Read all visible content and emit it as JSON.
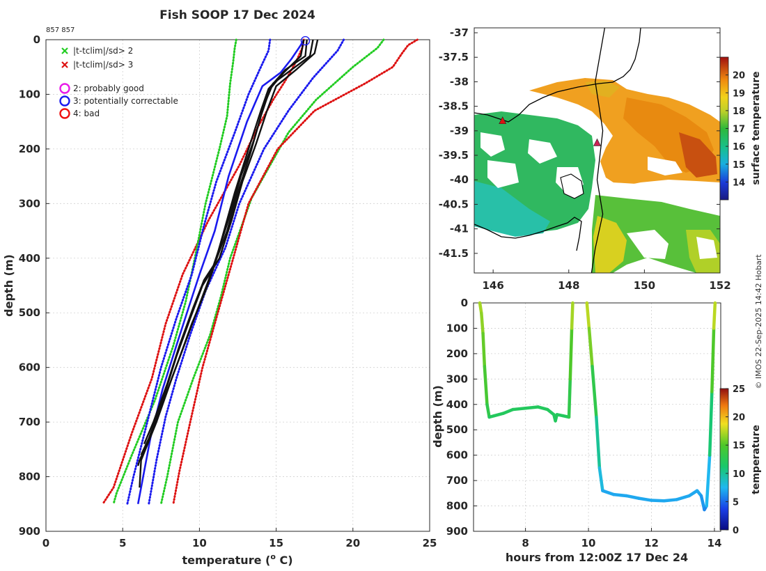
{
  "colors": {
    "thr2": "#22cc22",
    "thr3": "#dd1111",
    "climFit": "#1a1aee",
    "obs": "#111111",
    "flag2": "#e81ae8",
    "flag3": "#1a1aee",
    "flag4": "#ee1111"
  },
  "chart_data": [
    {
      "type": "line",
      "name": "profile",
      "title": "Fish SOOP 17 Dec 2024",
      "id_label": "857 857",
      "xlabel_prefix": "temperature (",
      "xlabel_sup": "o",
      "xlabel_suffix": " C)",
      "ylabel": "depth (m)",
      "xlim": [
        0,
        25
      ],
      "ylim": [
        900,
        0
      ],
      "xticks": [
        "0",
        "5",
        "10",
        "15",
        "20",
        "25"
      ],
      "yticks": [
        "0",
        "100",
        "200",
        "300",
        "400",
        "500",
        "600",
        "700",
        "800",
        "900"
      ],
      "legend": [
        {
          "marker": "x",
          "color": "#22cc22",
          "label": "|t-tclim|/sd> 2"
        },
        {
          "marker": "x",
          "color": "#dd1111",
          "label": "|t-tclim|/sd> 3"
        },
        {
          "marker": "o",
          "color": "#e81ae8",
          "label": "2: probably good"
        },
        {
          "marker": "o",
          "color": "#1a1aee",
          "label": "3: potentially correctable"
        },
        {
          "marker": "o",
          "color": "#ee1111",
          "label": "4: bad"
        }
      ],
      "series": [
        {
          "name": "clim -3sd",
          "style": "dotted",
          "color": "#dd1111",
          "points": [
            [
              16.8,
              0
            ],
            [
              16.7,
              15
            ],
            [
              16.3,
              40
            ],
            [
              15.6,
              75
            ],
            [
              14.8,
              110
            ],
            [
              13.8,
              160
            ],
            [
              12.6,
              230
            ],
            [
              10.6,
              330
            ],
            [
              8.9,
              430
            ],
            [
              7.8,
              520
            ],
            [
              6.9,
              620
            ],
            [
              5.6,
              720
            ],
            [
              4.4,
              820
            ],
            [
              3.7,
              850
            ]
          ]
        },
        {
          "name": "clim -2sd",
          "style": "dotted",
          "color": "#22cc22",
          "points": [
            [
              12.4,
              0
            ],
            [
              12.3,
              15
            ],
            [
              12.2,
              40
            ],
            [
              12.0,
              80
            ],
            [
              11.8,
              140
            ],
            [
              11.3,
              200
            ],
            [
              10.4,
              300
            ],
            [
              9.7,
              400
            ],
            [
              9.1,
              480
            ],
            [
              8.3,
              560
            ],
            [
              7.1,
              660
            ],
            [
              5.6,
              760
            ],
            [
              4.6,
              830
            ],
            [
              4.4,
              850
            ]
          ]
        },
        {
          "name": "clim -1sd",
          "style": "dotted",
          "color": "#1a1aee",
          "points": [
            [
              14.6,
              0
            ],
            [
              14.5,
              20
            ],
            [
              14.0,
              50
            ],
            [
              13.2,
              100
            ],
            [
              12.3,
              170
            ],
            [
              11.1,
              260
            ],
            [
              10.3,
              340
            ],
            [
              9.5,
              430
            ],
            [
              8.5,
              510
            ],
            [
              7.5,
              600
            ],
            [
              6.6,
              700
            ],
            [
              5.7,
              800
            ],
            [
              5.3,
              850
            ]
          ]
        },
        {
          "name": "clim mean",
          "style": "solid",
          "color": "#1a1aee",
          "points": [
            [
              16.8,
              0
            ],
            [
              16.6,
              10
            ],
            [
              16.0,
              35
            ],
            [
              15.3,
              60
            ],
            [
              14.1,
              85
            ],
            [
              13.1,
              150
            ],
            [
              11.9,
              250
            ],
            [
              11.0,
              350
            ],
            [
              10.0,
              430
            ],
            [
              9.3,
              490
            ],
            [
              8.5,
              560
            ],
            [
              7.6,
              640
            ],
            [
              6.8,
              730
            ],
            [
              6.0,
              850
            ]
          ]
        },
        {
          "name": "clim +1sd",
          "style": "dotted",
          "color": "#1a1aee",
          "points": [
            [
              19.4,
              0
            ],
            [
              19.0,
              20
            ],
            [
              17.4,
              70
            ],
            [
              15.8,
              130
            ],
            [
              14.2,
              200
            ],
            [
              12.6,
              300
            ],
            [
              11.7,
              380
            ],
            [
              10.4,
              460
            ],
            [
              9.4,
              540
            ],
            [
              8.5,
              620
            ],
            [
              7.8,
              690
            ],
            [
              7.2,
              770
            ],
            [
              6.7,
              850
            ]
          ]
        },
        {
          "name": "clim +2sd",
          "style": "dotted",
          "color": "#22cc22",
          "points": [
            [
              22.0,
              0
            ],
            [
              21.6,
              15
            ],
            [
              20.0,
              50
            ],
            [
              17.6,
              110
            ],
            [
              15.8,
              170
            ],
            [
              13.4,
              290
            ],
            [
              12.0,
              400
            ],
            [
              11.4,
              470
            ],
            [
              10.7,
              540
            ],
            [
              9.6,
              620
            ],
            [
              8.6,
              700
            ],
            [
              7.9,
              800
            ],
            [
              7.5,
              850
            ]
          ]
        },
        {
          "name": "clim +3sd",
          "style": "dotted",
          "color": "#dd1111",
          "points": [
            [
              24.2,
              0
            ],
            [
              23.6,
              10
            ],
            [
              23.2,
              25
            ],
            [
              22.6,
              50
            ],
            [
              20.8,
              80
            ],
            [
              17.5,
              130
            ],
            [
              15.1,
              200
            ],
            [
              13.2,
              300
            ],
            [
              12.2,
              400
            ],
            [
              11.2,
              500
            ],
            [
              10.2,
              600
            ],
            [
              9.4,
              700
            ],
            [
              8.7,
              790
            ],
            [
              8.3,
              850
            ]
          ]
        },
        {
          "name": "cast 1",
          "style": "solid",
          "color": "#111111",
          "points": [
            [
              17.4,
              0
            ],
            [
              17.2,
              30
            ],
            [
              16.0,
              55
            ],
            [
              14.8,
              80
            ],
            [
              14.2,
              120
            ],
            [
              13.6,
              180
            ],
            [
              12.7,
              250
            ],
            [
              12.0,
              320
            ],
            [
              11.2,
              390
            ],
            [
              10.6,
              440
            ],
            [
              9.8,
              500
            ],
            [
              9.0,
              560
            ],
            [
              8.2,
              620
            ],
            [
              7.2,
              700
            ],
            [
              6.2,
              770
            ],
            [
              6.1,
              820
            ]
          ]
        },
        {
          "name": "cast 2",
          "style": "solid",
          "color": "#111111",
          "points": [
            [
              17.0,
              0
            ],
            [
              16.9,
              30
            ],
            [
              15.6,
              55
            ],
            [
              14.5,
              90
            ],
            [
              14.0,
              130
            ],
            [
              13.2,
              200
            ],
            [
              12.3,
              280
            ],
            [
              11.5,
              360
            ],
            [
              10.9,
              420
            ],
            [
              10.4,
              460
            ],
            [
              9.5,
              520
            ],
            [
              8.6,
              590
            ],
            [
              7.8,
              650
            ],
            [
              6.9,
              720
            ],
            [
              6.1,
              770
            ],
            [
              6.0,
              780
            ]
          ]
        },
        {
          "name": "cast 3",
          "style": "solid",
          "color": "#111111",
          "points": [
            [
              17.7,
              0
            ],
            [
              17.5,
              25
            ],
            [
              16.3,
              55
            ],
            [
              15.0,
              85
            ],
            [
              14.4,
              130
            ],
            [
              13.7,
              190
            ],
            [
              12.8,
              260
            ],
            [
              12.1,
              330
            ],
            [
              11.3,
              400
            ],
            [
              10.2,
              450
            ],
            [
              9.4,
              510
            ],
            [
              8.5,
              580
            ],
            [
              7.6,
              660
            ],
            [
              6.7,
              730
            ],
            [
              6.2,
              760
            ]
          ]
        },
        {
          "name": "cast 4",
          "style": "solid",
          "color": "#111111",
          "points": [
            [
              16.8,
              0
            ],
            [
              16.6,
              30
            ],
            [
              15.5,
              60
            ],
            [
              14.6,
              90
            ],
            [
              14.0,
              140
            ],
            [
              13.3,
              210
            ],
            [
              12.5,
              280
            ],
            [
              11.8,
              350
            ],
            [
              11.0,
              410
            ],
            [
              10.3,
              440
            ],
            [
              9.6,
              490
            ],
            [
              8.7,
              560
            ],
            [
              7.9,
              630
            ],
            [
              7.0,
              700
            ],
            [
              6.4,
              740
            ]
          ]
        }
      ],
      "flag_point": {
        "t": 16.9,
        "depth": 2,
        "flag": "3: potentially correctable"
      }
    },
    {
      "type": "heatmap",
      "name": "surface temperature map",
      "xticks": [
        "146",
        "148",
        "150",
        "152"
      ],
      "yticks": [
        "-37",
        "-37.5",
        "-38",
        "-38.5",
        "-39",
        "-39.5",
        "-40",
        "-40.5",
        "-41",
        "-41.5"
      ],
      "xlim": [
        145.5,
        152
      ],
      "ylim": [
        -41.9,
        -36.9
      ],
      "colorbar_label": "surface temperature",
      "colorbar_ticks": [
        "14",
        "15",
        "16",
        "17",
        "18",
        "19",
        "20"
      ],
      "clim": [
        13,
        21
      ],
      "track": [
        [
          148.95,
          -36.9
        ],
        [
          148.7,
          -38.0
        ],
        [
          148.9,
          -39.0
        ],
        [
          148.75,
          -40.0
        ],
        [
          148.9,
          -40.7
        ],
        [
          148.7,
          -41.4
        ],
        [
          148.6,
          -41.9
        ]
      ],
      "drop_markers": [
        {
          "lon": 146.25,
          "lat": -38.8,
          "color": "#dd1111"
        },
        {
          "lon": 148.75,
          "lat": -39.25,
          "color": "#cc2255"
        }
      ]
    },
    {
      "type": "scatter",
      "name": "depth time series",
      "xlabel": "hours from 12:00Z 17 Dec 24",
      "ylabel": "depth (m)",
      "xticks": [
        "8",
        "10",
        "12",
        "14"
      ],
      "yticks": [
        "0",
        "100",
        "200",
        "300",
        "400",
        "500",
        "600",
        "700",
        "800",
        "900"
      ],
      "xlim": [
        6.35,
        14.2
      ],
      "ylim": [
        900,
        0
      ],
      "colorbar_label": "temperature",
      "colorbar_ticks": [
        "0",
        "5",
        "10",
        "15",
        "20",
        "25"
      ],
      "clim": [
        0,
        25
      ],
      "segments": [
        {
          "points": [
            [
              6.55,
              0,
              17
            ],
            [
              6.6,
              40,
              17
            ],
            [
              6.65,
              120,
              16
            ],
            [
              6.7,
              250,
              15
            ],
            [
              6.78,
              400,
              14
            ],
            [
              6.85,
              450,
              12
            ],
            [
              7.0,
              445,
              12
            ],
            [
              7.3,
              435,
              12
            ],
            [
              7.6,
              420,
              12
            ],
            [
              8.0,
              415,
              12
            ],
            [
              8.4,
              410,
              12
            ],
            [
              8.7,
              420,
              12
            ],
            [
              8.9,
              440,
              12
            ],
            [
              8.95,
              465,
              12
            ],
            [
              9.0,
              440,
              12
            ],
            [
              9.2,
              445,
              12
            ],
            [
              9.38,
              450,
              12
            ],
            [
              9.42,
              300,
              14
            ],
            [
              9.47,
              100,
              16
            ],
            [
              9.5,
              0,
              18
            ]
          ]
        },
        {
          "points": [
            [
              9.95,
              0,
              18
            ],
            [
              10.02,
              100,
              17
            ],
            [
              10.12,
              250,
              15
            ],
            [
              10.25,
              450,
              11
            ],
            [
              10.35,
              650,
              9
            ],
            [
              10.45,
              740,
              7
            ],
            [
              10.8,
              755,
              7
            ],
            [
              11.2,
              760,
              7
            ],
            [
              11.6,
              770,
              7
            ],
            [
              12.0,
              778,
              7
            ],
            [
              12.4,
              780,
              7
            ],
            [
              12.8,
              775,
              7
            ],
            [
              13.2,
              760,
              7
            ],
            [
              13.45,
              740,
              7
            ],
            [
              13.58,
              760,
              7
            ],
            [
              13.68,
              815,
              6
            ],
            [
              13.75,
              800,
              6
            ],
            [
              13.85,
              600,
              9
            ],
            [
              13.92,
              350,
              13
            ],
            [
              13.98,
              100,
              17
            ],
            [
              14.02,
              0,
              18
            ]
          ]
        }
      ]
    }
  ],
  "copyright": "© IMOS 22-Sep-2025 14:42 Hobart"
}
